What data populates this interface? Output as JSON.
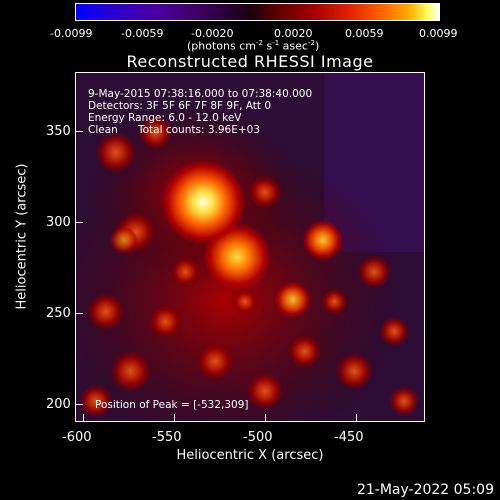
{
  "colorbar": {
    "tick_labels": [
      "-0.0099",
      "-0.0059",
      "-0.0020",
      "0.0020",
      "0.0059",
      "0.0099"
    ],
    "unit_label": "(photons cm",
    "unit_exp1": "-2",
    "unit_mid": " s",
    "unit_exp2": "-1",
    "unit_mid2": " asec",
    "unit_exp3": "-2",
    "unit_end": ")"
  },
  "title": "Reconstructed RHESSI Image",
  "annotations": {
    "time": "9-May-2015 07:38:16.000 to 07:38:40.000",
    "detectors": "Detectors: 3F 5F 6F 7F 8F 9F, Att 0",
    "energy": "Energy Range: 6.0 - 12.0 keV",
    "method": "Clean",
    "counts": "Total counts: 3.96E+03",
    "peak": "Position of Peak = [-532,309]"
  },
  "axes": {
    "y_title": "Heliocentric Y (arcsec)",
    "x_title": "Heliocentric X (arcsec)",
    "y_ticks": [
      "350",
      "300",
      "250",
      "200"
    ],
    "x_ticks": [
      "-600",
      "-550",
      "-500",
      "-450"
    ]
  },
  "footer_date": "21-May-2022 05:09",
  "colors": {
    "background": "#000000",
    "foreground": "#ffffff"
  }
}
